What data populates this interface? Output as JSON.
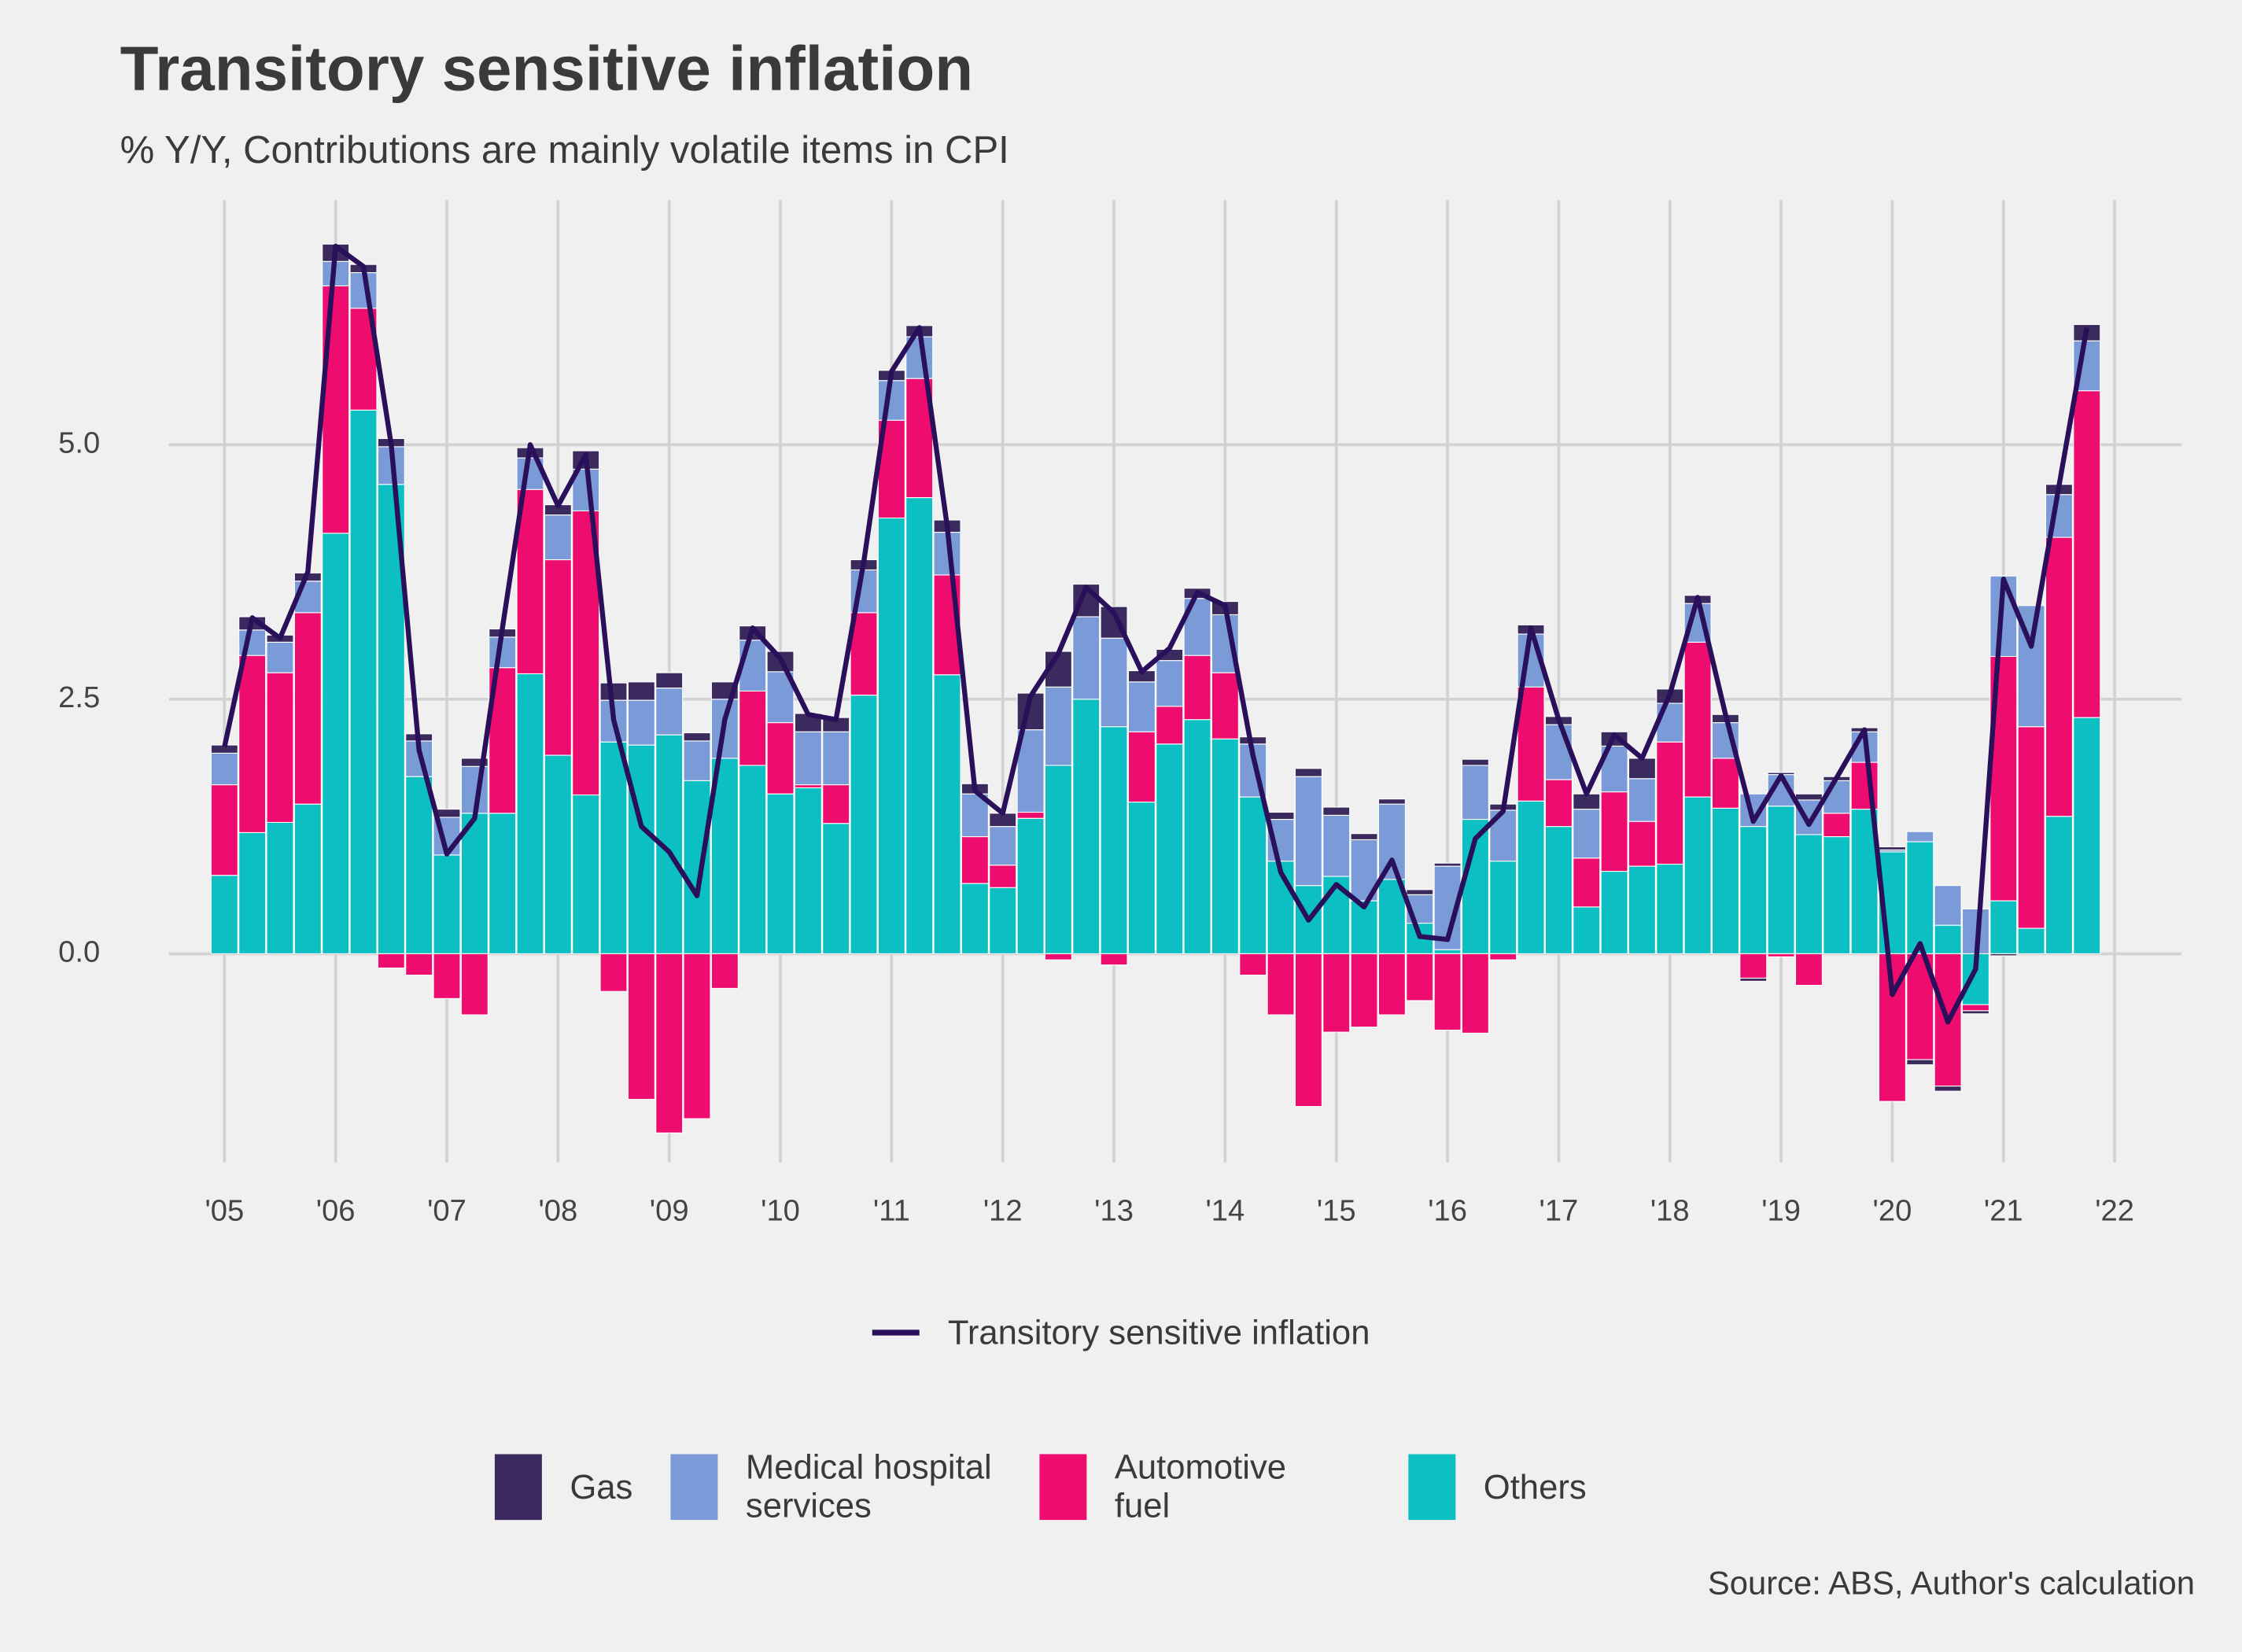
{
  "chart_data": {
    "type": "bar",
    "title": "Transitory sensitive inflation",
    "subtitle": "% Y/Y, Contributions are mainly volatile items in CPI",
    "source": "Source: ABS, Author's calculation",
    "stacked": true,
    "grid": true,
    "x": [
      2005,
      2005.25,
      2005.5,
      2005.75,
      2006,
      2006.25,
      2006.5,
      2006.75,
      2007,
      2007.25,
      2007.5,
      2007.75,
      2008,
      2008.25,
      2008.5,
      2008.75,
      2009,
      2009.25,
      2009.5,
      2009.75,
      2010,
      2010.25,
      2010.5,
      2010.75,
      2011,
      2011.25,
      2011.5,
      2011.75,
      2012,
      2012.25,
      2012.5,
      2012.75,
      2013,
      2013.25,
      2013.5,
      2013.75,
      2014,
      2014.25,
      2014.5,
      2014.75,
      2015,
      2015.25,
      2015.5,
      2015.75,
      2016,
      2016.25,
      2016.5,
      2016.75,
      2017,
      2017.25,
      2017.5,
      2017.75,
      2018,
      2018.25,
      2018.5,
      2018.75,
      2019,
      2019.25,
      2019.5,
      2019.75,
      2020,
      2020.25,
      2020.5,
      2020.75,
      2021,
      2021.25,
      2021.5,
      2021.75
    ],
    "xlim": [
      2004.5,
      2022.6
    ],
    "xticks": [
      {
        "value": 2005,
        "label": "'05"
      },
      {
        "value": 2006,
        "label": "'06"
      },
      {
        "value": 2007,
        "label": "'07"
      },
      {
        "value": 2008,
        "label": "'08"
      },
      {
        "value": 2009,
        "label": "'09"
      },
      {
        "value": 2010,
        "label": "'10"
      },
      {
        "value": 2011,
        "label": "'11"
      },
      {
        "value": 2012,
        "label": "'12"
      },
      {
        "value": 2013,
        "label": "'13"
      },
      {
        "value": 2014,
        "label": "'14"
      },
      {
        "value": 2015,
        "label": "'15"
      },
      {
        "value": 2016,
        "label": "'16"
      },
      {
        "value": 2017,
        "label": "'17"
      },
      {
        "value": 2018,
        "label": "'18"
      },
      {
        "value": 2019,
        "label": "'19"
      },
      {
        "value": 2020,
        "label": "'20"
      },
      {
        "value": 2021,
        "label": "'21"
      },
      {
        "value": 2022,
        "label": "'22"
      }
    ],
    "ylim": [
      -2.05,
      7.4
    ],
    "yticks": [
      {
        "value": 0,
        "label": "0.0"
      },
      {
        "value": 2.5,
        "label": "2.5"
      },
      {
        "value": 5,
        "label": "5.0"
      }
    ],
    "series": [
      {
        "name": "Gas",
        "color": "#3b2a5e",
        "values": [
          0.08,
          0.13,
          0.07,
          0.08,
          0.17,
          0.08,
          0.08,
          0.07,
          0.08,
          0.08,
          0.08,
          0.1,
          0.1,
          0.18,
          0.17,
          0.18,
          0.15,
          0.08,
          0.17,
          0.14,
          0.2,
          0.18,
          0.14,
          0.1,
          0.1,
          0.11,
          0.12,
          0.1,
          0.13,
          0.36,
          0.35,
          0.32,
          0.31,
          0.11,
          0.11,
          0.1,
          0.13,
          0.07,
          0.07,
          0.08,
          0.08,
          0.06,
          0.05,
          0.05,
          0.03,
          0.06,
          0.06,
          0.09,
          0.08,
          0.15,
          0.14,
          0.2,
          0.14,
          0.08,
          0.08,
          -0.03,
          0.02,
          0.06,
          0.04,
          0.04,
          0.03,
          -0.05,
          -0.05,
          -0.03,
          -0.02,
          0.0,
          0.1,
          0.16
        ]
      },
      {
        "name": "Medical hospital\nservices",
        "color": "#7b9bd8",
        "values": [
          0.31,
          0.25,
          0.3,
          0.31,
          0.24,
          0.35,
          0.37,
          0.35,
          0.37,
          0.46,
          0.3,
          0.31,
          0.44,
          0.41,
          0.41,
          0.44,
          0.46,
          0.39,
          0.58,
          0.5,
          0.5,
          0.52,
          0.52,
          0.42,
          0.39,
          0.41,
          0.42,
          0.42,
          0.38,
          0.81,
          0.77,
          0.81,
          0.87,
          0.49,
          0.45,
          0.56,
          0.57,
          0.52,
          0.41,
          1.07,
          0.6,
          0.6,
          0.74,
          0.28,
          0.82,
          0.53,
          0.5,
          0.52,
          0.54,
          0.48,
          0.45,
          0.42,
          0.38,
          0.38,
          0.35,
          0.32,
          0.31,
          0.34,
          0.32,
          0.3,
          0.02,
          0.1,
          0.39,
          0.44,
          0.79,
          1.19,
          0.42,
          0.49
        ]
      },
      {
        "name": "Automotive\nfuel",
        "color": "#ee0c6e",
        "values": [
          0.89,
          1.74,
          1.47,
          1.88,
          2.43,
          1.0,
          -0.14,
          -0.21,
          -0.44,
          -0.6,
          1.43,
          1.81,
          1.92,
          2.79,
          -0.37,
          -1.43,
          -1.76,
          -1.62,
          -0.34,
          0.73,
          0.7,
          0.03,
          0.38,
          0.81,
          0.96,
          1.17,
          0.98,
          0.46,
          0.22,
          0.06,
          -0.06,
          0.0,
          -0.11,
          0.69,
          0.37,
          0.63,
          0.65,
          -0.21,
          -0.6,
          -1.5,
          -0.77,
          -0.72,
          -0.6,
          -0.46,
          -0.75,
          -0.78,
          -0.06,
          1.12,
          0.46,
          0.48,
          0.78,
          0.44,
          1.2,
          1.52,
          0.49,
          -0.24,
          -0.03,
          -0.31,
          0.23,
          0.46,
          -1.45,
          -1.04,
          -1.3,
          -0.06,
          2.4,
          1.98,
          2.74,
          3.21
        ]
      },
      {
        "name": "Others",
        "color": "#0bbfc3",
        "values": [
          0.77,
          1.19,
          1.29,
          1.47,
          4.13,
          5.34,
          4.61,
          1.74,
          0.97,
          1.38,
          1.38,
          2.75,
          1.95,
          1.56,
          2.08,
          2.05,
          2.15,
          1.7,
          1.92,
          1.85,
          1.57,
          1.63,
          1.28,
          2.54,
          4.28,
          4.48,
          2.74,
          0.69,
          0.65,
          1.33,
          1.85,
          2.5,
          2.23,
          1.49,
          2.06,
          2.3,
          2.11,
          1.54,
          0.91,
          0.67,
          0.76,
          0.52,
          0.73,
          0.3,
          0.04,
          1.32,
          0.91,
          1.5,
          1.25,
          0.46,
          0.81,
          0.86,
          0.88,
          1.54,
          1.43,
          1.25,
          1.45,
          1.17,
          1.15,
          1.42,
          1.0,
          1.1,
          0.28,
          -0.5,
          0.52,
          0.25,
          1.35,
          2.32
        ]
      }
    ],
    "line": {
      "name": "Transitory sensitive inflation",
      "color": "#2a0f5a",
      "values": [
        2.03,
        3.3,
        3.1,
        3.75,
        6.95,
        6.75,
        5.0,
        2.0,
        0.98,
        1.33,
        3.2,
        5.0,
        4.4,
        4.9,
        2.3,
        1.25,
        1.0,
        0.57,
        2.3,
        3.2,
        2.9,
        2.35,
        2.3,
        3.85,
        5.72,
        6.15,
        4.2,
        1.6,
        1.38,
        2.53,
        2.95,
        3.6,
        3.35,
        2.77,
        3.0,
        3.55,
        3.42,
        1.95,
        0.8,
        0.33,
        0.68,
        0.46,
        0.92,
        0.17,
        0.14,
        1.13,
        1.4,
        3.2,
        2.3,
        1.57,
        2.15,
        1.92,
        2.55,
        3.5,
        2.35,
        1.3,
        1.75,
        1.27,
        1.73,
        2.2,
        -0.4,
        0.1,
        -0.67,
        -0.15,
        3.68,
        3.02,
        4.6,
        6.15
      ]
    }
  }
}
